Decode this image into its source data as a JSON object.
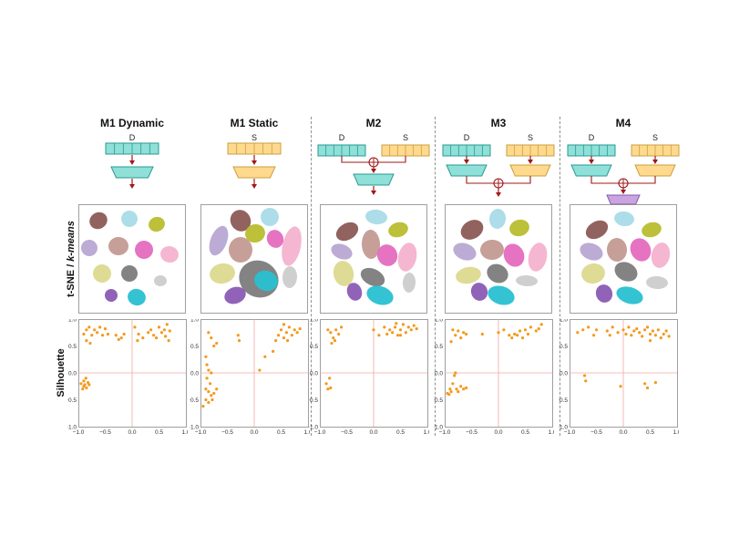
{
  "row_labels": {
    "tsne": "t-SNE / ",
    "kmeans": "k-means",
    "silhouette": "Silhouette"
  },
  "colors": {
    "dynamic_box": "#8fe0d8",
    "dynamic_border": "#2a9a90",
    "static_box": "#ffd98e",
    "static_border": "#c9a040",
    "fusion_box": "#c9a4e0",
    "fusion_border": "#8a5aa8",
    "arrow": "#a01818",
    "scatter": "#f39a1e",
    "axis_zero": "#f3a6a6"
  },
  "axis_ticks": {
    "x": [
      "−1.0",
      "−0.5",
      "0.0",
      "0.5",
      "1.0"
    ],
    "y": [
      "1.0",
      "0.5",
      "0.0",
      "−0.5",
      "−1.0"
    ]
  },
  "models": [
    {
      "title": "M1 Dynamic",
      "inputs": [
        "D"
      ],
      "fusion": "none",
      "silhouette_points": [
        [
          -0.85,
          0.8
        ],
        [
          -0.8,
          0.85
        ],
        [
          -0.75,
          0.7
        ],
        [
          -0.7,
          0.8
        ],
        [
          -0.65,
          0.75
        ],
        [
          -0.6,
          0.85
        ],
        [
          -0.55,
          0.7
        ],
        [
          -0.85,
          0.6
        ],
        [
          -0.78,
          0.55
        ],
        [
          -0.5,
          0.82
        ],
        [
          -0.45,
          0.72
        ],
        [
          -0.9,
          0.72
        ],
        [
          -0.3,
          0.7
        ],
        [
          -0.25,
          0.62
        ],
        [
          -0.2,
          0.65
        ],
        [
          -0.15,
          0.72
        ],
        [
          0.05,
          0.85
        ],
        [
          0.1,
          0.6
        ],
        [
          0.12,
          0.72
        ],
        [
          0.2,
          0.65
        ],
        [
          0.3,
          0.75
        ],
        [
          0.35,
          0.8
        ],
        [
          0.4,
          0.7
        ],
        [
          0.45,
          0.65
        ],
        [
          0.5,
          0.85
        ],
        [
          0.55,
          0.75
        ],
        [
          0.6,
          0.8
        ],
        [
          0.62,
          0.68
        ],
        [
          0.65,
          0.9
        ],
        [
          0.7,
          0.78
        ],
        [
          0.68,
          0.6
        ],
        [
          -0.95,
          -0.2
        ],
        [
          -0.9,
          -0.25
        ],
        [
          -0.88,
          -0.22
        ],
        [
          -0.85,
          -0.28
        ],
        [
          -0.82,
          -0.18
        ],
        [
          -0.92,
          -0.3
        ],
        [
          -0.86,
          -0.1
        ],
        [
          -0.8,
          -0.22
        ],
        [
          -0.9,
          -0.15
        ]
      ]
    },
    {
      "title": "M1 Static",
      "inputs": [
        "S"
      ],
      "fusion": "none",
      "silhouette_points": [
        [
          -0.85,
          0.75
        ],
        [
          -0.8,
          0.65
        ],
        [
          -0.75,
          0.5
        ],
        [
          -0.7,
          0.55
        ],
        [
          -0.9,
          0.3
        ],
        [
          -0.85,
          0.05
        ],
        [
          -0.8,
          0.0
        ],
        [
          -0.88,
          -0.1
        ],
        [
          -0.82,
          -0.2
        ],
        [
          -0.9,
          -0.3
        ],
        [
          -0.85,
          -0.35
        ],
        [
          -0.8,
          -0.42
        ],
        [
          -0.75,
          -0.38
        ],
        [
          -0.9,
          -0.5
        ],
        [
          -0.85,
          -0.55
        ],
        [
          -0.78,
          -0.5
        ],
        [
          -0.95,
          -0.62
        ],
        [
          -0.7,
          -0.3
        ],
        [
          -0.88,
          0.15
        ],
        [
          -0.3,
          0.7
        ],
        [
          -0.28,
          0.6
        ],
        [
          0.1,
          0.05
        ],
        [
          0.2,
          0.3
        ],
        [
          0.4,
          0.6
        ],
        [
          0.45,
          0.7
        ],
        [
          0.5,
          0.8
        ],
        [
          0.55,
          0.65
        ],
        [
          0.6,
          0.75
        ],
        [
          0.65,
          0.85
        ],
        [
          0.7,
          0.7
        ],
        [
          0.75,
          0.8
        ],
        [
          0.8,
          0.75
        ],
        [
          0.85,
          0.82
        ],
        [
          0.55,
          0.9
        ],
        [
          0.62,
          0.6
        ],
        [
          0.35,
          0.4
        ]
      ]
    },
    {
      "title": "M2",
      "inputs": [
        "D",
        "S"
      ],
      "fusion": "early",
      "silhouette_points": [
        [
          -0.85,
          0.8
        ],
        [
          -0.8,
          0.75
        ],
        [
          -0.75,
          0.65
        ],
        [
          -0.7,
          0.8
        ],
        [
          -0.65,
          0.72
        ],
        [
          -0.6,
          0.85
        ],
        [
          -0.78,
          0.55
        ],
        [
          -0.72,
          0.6
        ],
        [
          -0.88,
          -0.2
        ],
        [
          -0.85,
          -0.3
        ],
        [
          -0.82,
          -0.1
        ],
        [
          -0.8,
          -0.28
        ],
        [
          0.0,
          0.8
        ],
        [
          0.1,
          0.7
        ],
        [
          0.2,
          0.85
        ],
        [
          0.25,
          0.72
        ],
        [
          0.3,
          0.8
        ],
        [
          0.35,
          0.75
        ],
        [
          0.4,
          0.85
        ],
        [
          0.45,
          0.7
        ],
        [
          0.5,
          0.8
        ],
        [
          0.55,
          0.9
        ],
        [
          0.6,
          0.75
        ],
        [
          0.65,
          0.85
        ],
        [
          0.7,
          0.8
        ],
        [
          0.75,
          0.88
        ],
        [
          0.8,
          0.82
        ],
        [
          0.5,
          0.7
        ],
        [
          0.42,
          0.92
        ]
      ]
    },
    {
      "title": "M3",
      "inputs": [
        "D",
        "S"
      ],
      "fusion": "late",
      "silhouette_points": [
        [
          -0.85,
          0.8
        ],
        [
          -0.8,
          0.7
        ],
        [
          -0.75,
          0.78
        ],
        [
          -0.7,
          0.65
        ],
        [
          -0.65,
          0.75
        ],
        [
          -0.6,
          0.72
        ],
        [
          -0.88,
          0.58
        ],
        [
          -0.92,
          -0.4
        ],
        [
          -0.9,
          -0.3
        ],
        [
          -0.88,
          -0.35
        ],
        [
          -0.85,
          -0.2
        ],
        [
          -0.82,
          -0.05
        ],
        [
          -0.8,
          0.0
        ],
        [
          -0.78,
          -0.3
        ],
        [
          -0.75,
          -0.35
        ],
        [
          -0.7,
          -0.25
        ],
        [
          -0.65,
          -0.3
        ],
        [
          -0.6,
          -0.28
        ],
        [
          -0.95,
          -0.38
        ],
        [
          -0.3,
          0.72
        ],
        [
          0.0,
          0.75
        ],
        [
          0.1,
          0.8
        ],
        [
          0.2,
          0.7
        ],
        [
          0.25,
          0.65
        ],
        [
          0.3,
          0.72
        ],
        [
          0.35,
          0.7
        ],
        [
          0.4,
          0.78
        ],
        [
          0.5,
          0.8
        ],
        [
          0.55,
          0.72
        ],
        [
          0.6,
          0.85
        ],
        [
          0.7,
          0.78
        ],
        [
          0.75,
          0.82
        ],
        [
          0.8,
          0.9
        ],
        [
          0.45,
          0.65
        ]
      ]
    },
    {
      "title": "M4",
      "inputs": [
        "D",
        "S"
      ],
      "fusion": "hybrid",
      "silhouette_points": [
        [
          -0.85,
          0.75
        ],
        [
          -0.75,
          0.8
        ],
        [
          -0.65,
          0.85
        ],
        [
          -0.55,
          0.7
        ],
        [
          -0.5,
          0.8
        ],
        [
          -0.3,
          0.78
        ],
        [
          -0.25,
          0.7
        ],
        [
          -0.2,
          0.85
        ],
        [
          -0.1,
          0.75
        ],
        [
          0.0,
          0.8
        ],
        [
          0.05,
          0.72
        ],
        [
          0.1,
          0.85
        ],
        [
          0.15,
          0.7
        ],
        [
          0.2,
          0.78
        ],
        [
          0.25,
          0.82
        ],
        [
          0.3,
          0.75
        ],
        [
          0.35,
          0.68
        ],
        [
          0.4,
          0.8
        ],
        [
          0.45,
          0.85
        ],
        [
          0.5,
          0.72
        ],
        [
          0.55,
          0.78
        ],
        [
          0.6,
          0.7
        ],
        [
          0.65,
          0.8
        ],
        [
          0.7,
          0.65
        ],
        [
          0.75,
          0.72
        ],
        [
          0.8,
          0.78
        ],
        [
          0.85,
          0.68
        ],
        [
          0.5,
          0.6
        ],
        [
          -0.72,
          -0.05
        ],
        [
          -0.7,
          -0.15
        ],
        [
          -0.05,
          -0.25
        ],
        [
          0.4,
          -0.2
        ],
        [
          0.45,
          -0.28
        ],
        [
          0.6,
          -0.18
        ]
      ]
    }
  ]
}
